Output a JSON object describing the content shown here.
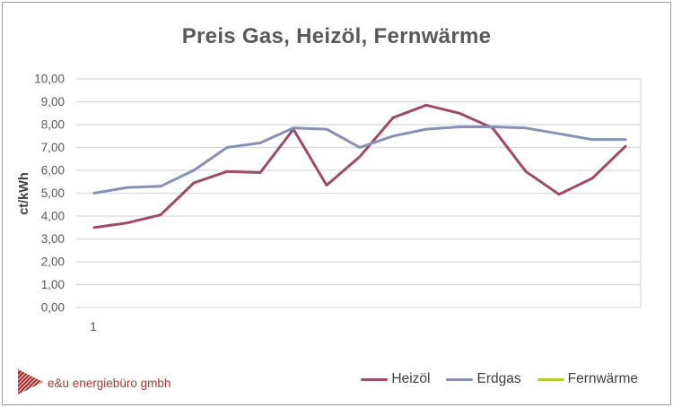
{
  "window": {
    "background": "#ffffff",
    "border_color": "#9a9a9a"
  },
  "title": "Preis Gas, Heizöl, Fernwärme",
  "y_axis": {
    "title": "ct/kWh",
    "tick_labels": [
      "0,00",
      "1,00",
      "2,00",
      "3,00",
      "4,00",
      "5,00",
      "6,00",
      "7,00",
      "8,00",
      "9,00",
      "10,00"
    ],
    "min": 0,
    "max": 10
  },
  "x_axis": {
    "tick_labels": [
      "1"
    ],
    "n_points": 17
  },
  "legend": [
    {
      "label": "Heizöl",
      "color": "#9f4a64"
    },
    {
      "label": "Erdgas",
      "color": "#8691b8"
    },
    {
      "label": "Fernwärme",
      "color": "#b3cb33"
    }
  ],
  "footer": {
    "logo_text": "e&u energiebüro gmbh",
    "logo_color": "#b13434"
  },
  "colors": {
    "title_text": "#595959",
    "tick_text": "#595959",
    "axis_title_text": "#404040",
    "legend_text": "#404040",
    "gridline": "#d9d9d9"
  },
  "chart_data": {
    "type": "line",
    "title": "Preis Gas, Heizöl, Fernwärme",
    "xlabel": "",
    "ylabel": "ct/kWh",
    "ylim": [
      0,
      10
    ],
    "grid": true,
    "legend_position": "bottom-right",
    "x": [
      1,
      2,
      3,
      4,
      5,
      6,
      7,
      8,
      9,
      10,
      11,
      12,
      13,
      14,
      15,
      16,
      17
    ],
    "series": [
      {
        "name": "Heizöl",
        "color": "#9f4a64",
        "values": [
          3.5,
          3.7,
          4.05,
          5.45,
          5.95,
          5.9,
          7.8,
          5.35,
          6.6,
          8.3,
          8.85,
          8.5,
          7.85,
          5.95,
          4.95,
          5.65,
          7.05
        ]
      },
      {
        "name": "Erdgas",
        "color": "#8691b8",
        "values": [
          5.0,
          5.25,
          5.3,
          6.0,
          7.0,
          7.2,
          7.85,
          7.8,
          7.0,
          7.5,
          7.8,
          7.9,
          7.9,
          7.85,
          7.6,
          7.35,
          7.35
        ]
      },
      {
        "name": "Fernwärme",
        "color": "#b3cb33",
        "values": []
      }
    ]
  }
}
